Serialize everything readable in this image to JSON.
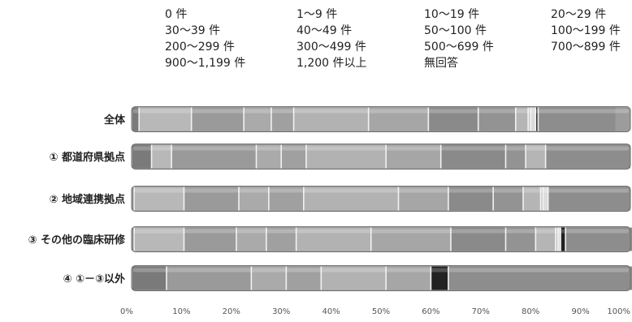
{
  "chart_data": {
    "type": "bar",
    "orientation": "horizontal",
    "stacked": "percent",
    "legend": {
      "placement": "top",
      "entries": [
        "0 件",
        "1～9 件",
        "10～19 件",
        "20～29 件",
        "30～39 件",
        "40～49 件",
        "50～100 件",
        "100～199 件",
        "200～299 件",
        "300～499 件",
        "500～699 件",
        "700～899 件",
        "900～1,199 件",
        "1,200 件以上",
        "無回答"
      ]
    },
    "categories": [
      "全体",
      "① 都道府県拠点",
      "② 地域連携拠点",
      "③ その他の臨床研修",
      "④ ①－③以外"
    ],
    "series": [
      {
        "name": "0 件",
        "color": "#7a7a7a",
        "values": [
          1.5,
          4,
          0.5,
          0.5,
          7
        ]
      },
      {
        "name": "1～9 件",
        "color": "#b8b8b8",
        "values": [
          10.5,
          4,
          10,
          10,
          0
        ]
      },
      {
        "name": "10～19 件",
        "color": "#a2a2a2",
        "values": [
          0,
          0,
          0,
          0,
          0
        ]
      },
      {
        "name": "20～29 件",
        "color": "#9a9a9a",
        "values": [
          10.5,
          17,
          11,
          10.5,
          17
        ]
      },
      {
        "name": "30～39 件",
        "color": "#aaaaaa",
        "values": [
          5.5,
          5,
          6,
          6,
          7
        ]
      },
      {
        "name": "40～49 件",
        "color": "#a0a0a0",
        "values": [
          4.5,
          5,
          7,
          6,
          7
        ]
      },
      {
        "name": "50～100 件",
        "color": "#b2b2b2",
        "values": [
          15,
          16,
          19,
          15,
          13
        ]
      },
      {
        "name": "100～199 件",
        "color": "#a6a6a6",
        "values": [
          12,
          11,
          10,
          16,
          9
        ]
      },
      {
        "name": "200～299 件",
        "color": "#8a8a8a",
        "values": [
          10,
          13,
          9,
          11,
          0
        ]
      },
      {
        "name": "300～499 件",
        "color": "#939393",
        "values": [
          7.5,
          4,
          6,
          6,
          0
        ]
      },
      {
        "name": "500～699 件",
        "color": "#b5b5b5",
        "values": [
          2.5,
          4,
          3.5,
          4,
          0
        ]
      },
      {
        "name": "700～899 件",
        "color": "#c8c8c8",
        "values": [
          0.5,
          0,
          0.5,
          0.5,
          0
        ]
      },
      {
        "name": "900～1,199 件",
        "color": "#dcdcdc",
        "values": [
          1,
          0,
          1,
          0.5,
          0
        ]
      },
      {
        "name": "1,200 件以上",
        "color": "#222222",
        "values": [
          0.5,
          0,
          0,
          1,
          3.5
        ]
      },
      {
        "name": "無回答",
        "color": "#8d8d8d",
        "values": [
          15.5,
          17,
          16.5,
          13.5,
          37
        ]
      }
    ],
    "x_ticks": [
      "0%",
      "10%",
      "20%",
      "30%",
      "40%",
      "50%",
      "60%",
      "70%",
      "80%",
      "90%",
      "100%"
    ],
    "xlim": [
      0,
      100
    ],
    "grid": false
  }
}
